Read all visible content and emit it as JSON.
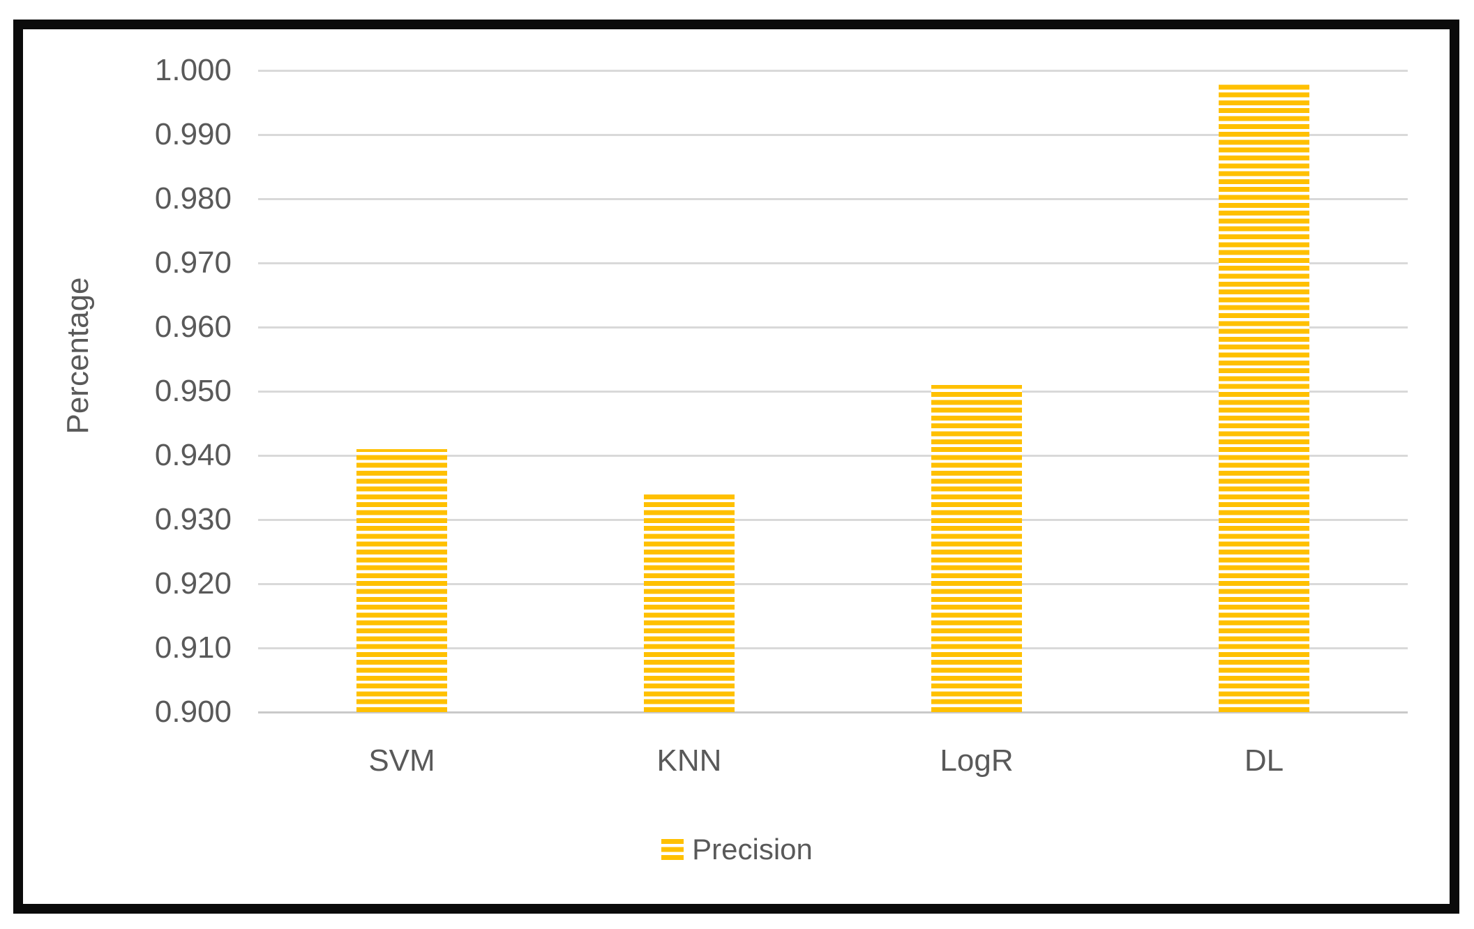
{
  "chart_data": {
    "type": "bar",
    "categories": [
      "SVM",
      "KNN",
      "LogR",
      "DL"
    ],
    "series": [
      {
        "name": "Precision",
        "values": [
          0.941,
          0.934,
          0.951,
          0.998
        ]
      }
    ],
    "xlabel": "",
    "ylabel": "Percentage",
    "ylim": [
      0.9,
      1.0
    ],
    "ytick_step": 0.01,
    "ytick_labels": [
      "1.000",
      "0.990",
      "0.980",
      "0.970",
      "0.960",
      "0.950",
      "0.940",
      "0.930",
      "0.920",
      "0.910",
      "0.900"
    ],
    "grid": true,
    "bar_pattern": "horizontal-stripes",
    "legend": {
      "position": "bottom-center",
      "entries": [
        {
          "label": "Precision",
          "swatch": "striped-square"
        }
      ]
    },
    "colors": {
      "bar": "#FFC000",
      "stripe_gap": "#FFFFFF",
      "gridline": "#D9D9D9",
      "baseline": "#C9C9C9",
      "text": "#595959",
      "frame_border": "#0B0B0B",
      "background": "#FFFFFF"
    }
  }
}
